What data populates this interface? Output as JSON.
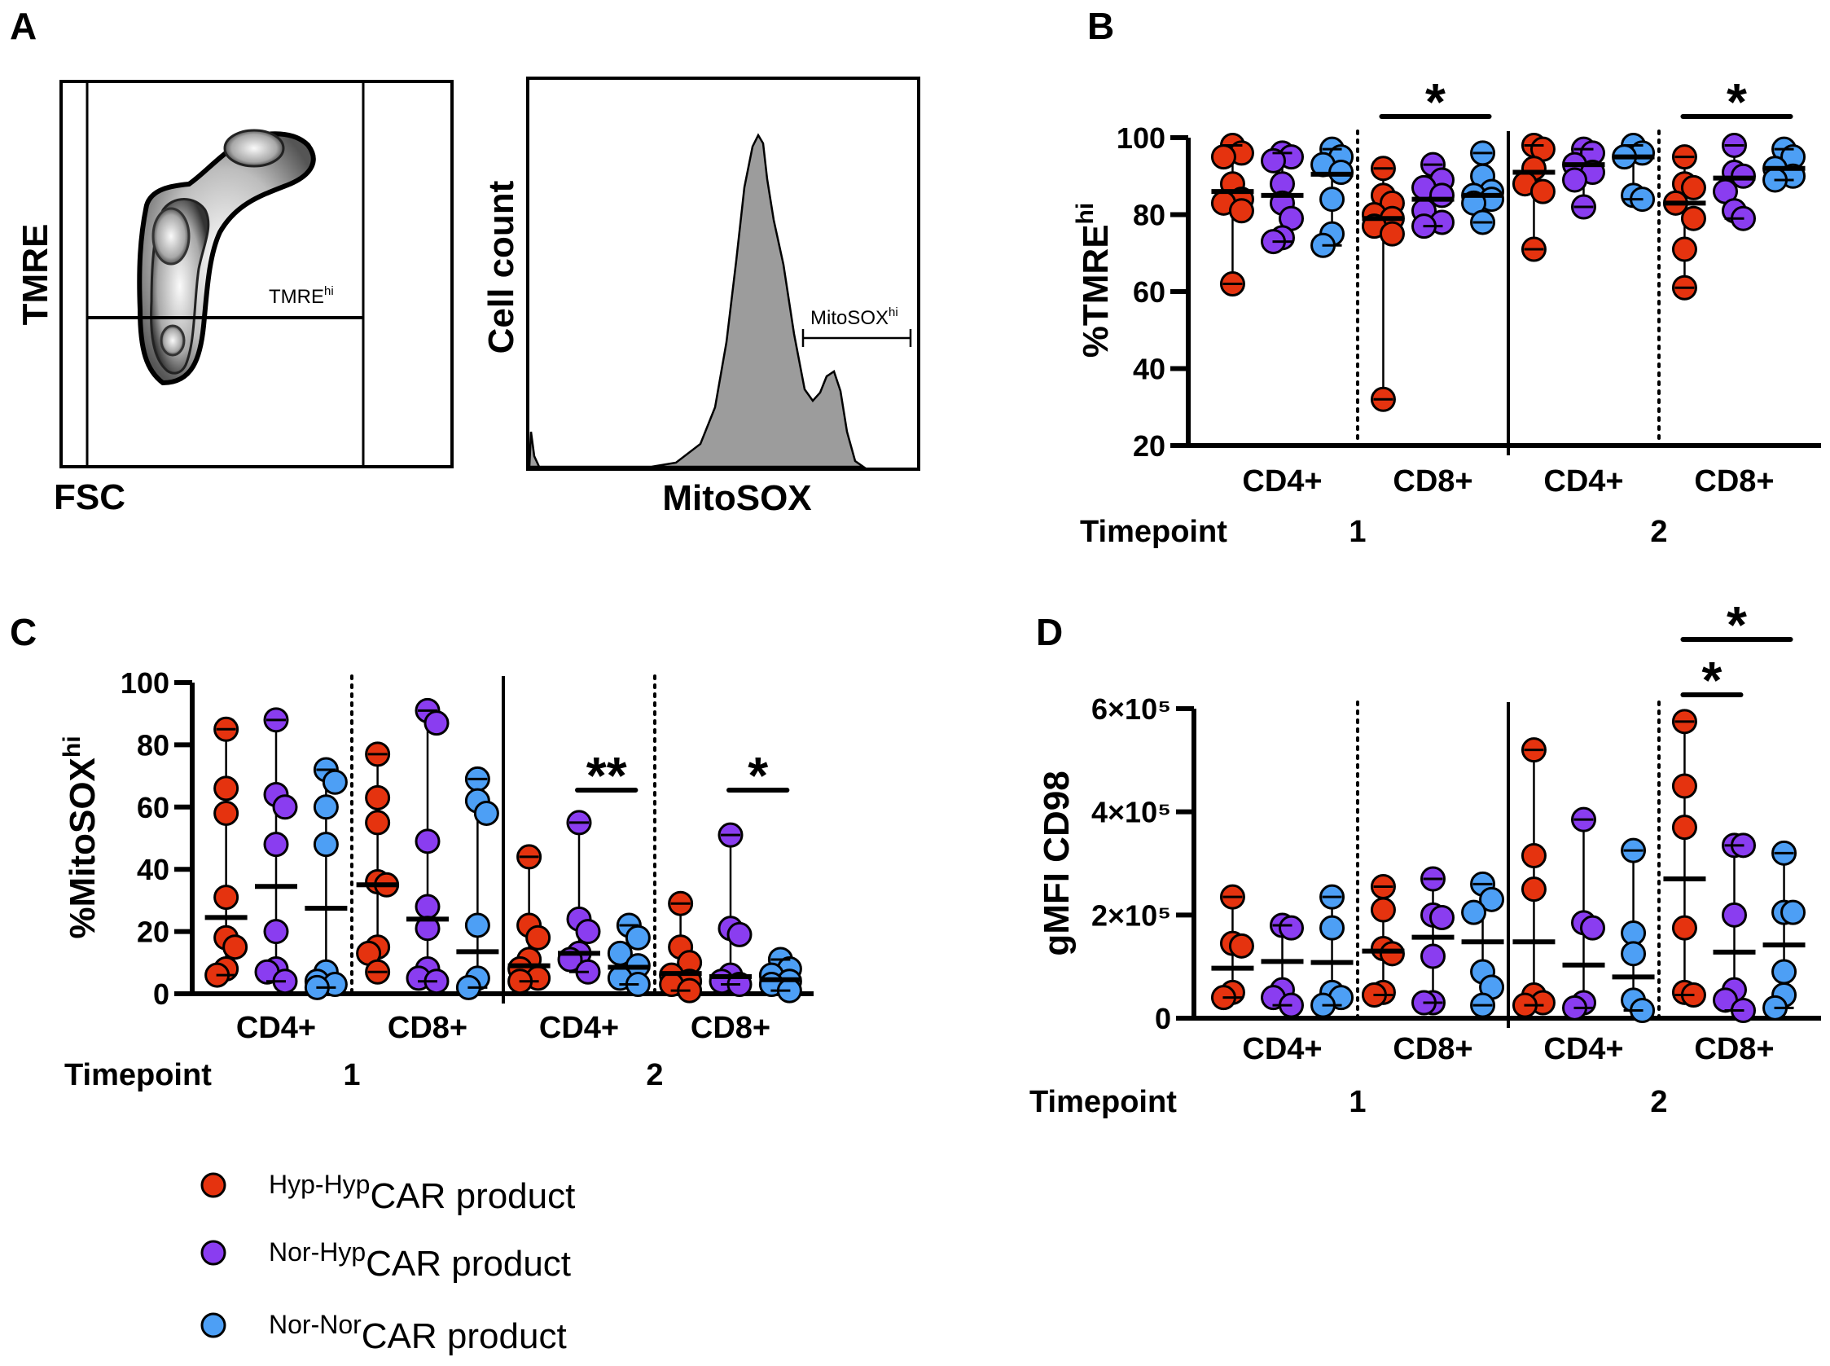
{
  "panel_a": {
    "letter": "A",
    "left_plot": {
      "ylabel": "TMRE",
      "xlabel": "FSC",
      "gate": "TMRE",
      "gate_sup": "hi"
    },
    "right_plot": {
      "ylabel": "Cell count",
      "xlabel": "MitoSOX",
      "gate": "MitoSOX",
      "gate_sup": "hi"
    }
  },
  "colors": {
    "Hyp-Hyp": "#e5330f",
    "Nor-Hyp": "#8a3df0",
    "Nor-Nor": "#4d9ff5"
  },
  "legend": {
    "items": [
      {
        "prefix": "Hyp-Hyp",
        "label": "CAR product",
        "color": "#e5330f"
      },
      {
        "prefix": "Nor-Hyp",
        "label": "CAR product",
        "color": "#8a3df0"
      },
      {
        "prefix": "Nor-Nor",
        "label": "CAR product",
        "color": "#4d9ff5"
      }
    ]
  },
  "chart_data": [
    {
      "panel": "B",
      "type": "scatter",
      "ylabel": "%TMRE",
      "ylabel_sup": "hi",
      "ylim": [
        20,
        100
      ],
      "yticks": [
        20,
        40,
        60,
        80,
        100
      ],
      "ytick_labels": [
        "20",
        "40",
        "60",
        "80",
        "100"
      ],
      "timepoint_label": "Timepoint",
      "timepoints": [
        "1",
        "2"
      ],
      "series": [
        "Hyp-Hyp",
        "Nor-Hyp",
        "Nor-Nor"
      ],
      "error_bars": "range",
      "groups": [
        {
          "category": "CD4+",
          "timepoint": "1",
          "values": [
            [
              98,
              96,
              95,
              88,
              84,
              83,
              81,
              62
            ],
            [
              96,
              95,
              94,
              88,
              83,
              79,
              74,
              73
            ],
            [
              97,
              95,
              93,
              91,
              84,
              75,
              72
            ]
          ],
          "means": [
            86,
            85,
            90.5
          ]
        },
        {
          "category": "CD8+",
          "timepoint": "1",
          "values": [
            [
              92,
              85,
              83,
              80,
              79,
              77,
              75,
              32
            ],
            [
              93,
              89,
              87,
              85,
              81,
              78,
              77
            ],
            [
              96,
              90,
              86,
              85,
              84,
              83,
              78
            ]
          ],
          "means": [
            79,
            84,
            85
          ]
        },
        {
          "category": "CD4+",
          "timepoint": "2",
          "values": [
            [
              98,
              97,
              92,
              88,
              86,
              71
            ],
            [
              97,
              96,
              93,
              91,
              89,
              82
            ],
            [
              98,
              96,
              95,
              85,
              84
            ]
          ],
          "means": [
            91,
            93,
            95
          ]
        },
        {
          "category": "CD8+",
          "timepoint": "2",
          "values": [
            [
              95,
              88,
              87,
              83,
              79,
              71,
              61
            ],
            [
              98,
              91,
              90,
              86,
              81,
              79
            ],
            [
              97,
              95,
              92,
              90,
              89
            ]
          ],
          "means": [
            83,
            89.5,
            92
          ]
        }
      ],
      "significance": [
        {
          "group": 1,
          "from": 0,
          "to": 2,
          "label": "*",
          "level": 1
        },
        {
          "group": 3,
          "from": 0,
          "to": 2,
          "label": "*",
          "level": 1
        }
      ]
    },
    {
      "panel": "C",
      "type": "scatter",
      "ylabel": "%MitoSOX",
      "ylabel_sup": "hi",
      "ylim": [
        0,
        100
      ],
      "yticks": [
        0,
        20,
        40,
        60,
        80,
        100
      ],
      "ytick_labels": [
        "0",
        "20",
        "40",
        "60",
        "80",
        "100"
      ],
      "timepoint_label": "Timepoint",
      "timepoints": [
        "1",
        "2"
      ],
      "series": [
        "Hyp-Hyp",
        "Nor-Hyp",
        "Nor-Nor"
      ],
      "error_bars": "range",
      "groups": [
        {
          "category": "CD4+",
          "timepoint": "1",
          "values": [
            [
              85,
              66,
              58,
              31,
              18,
              15,
              8,
              6
            ],
            [
              88,
              64,
              60,
              48,
              20,
              8,
              7,
              4
            ],
            [
              72,
              68,
              60,
              48,
              7,
              4,
              3,
              2
            ]
          ],
          "means": [
            24.5,
            34.5,
            27.5
          ]
        },
        {
          "category": "CD8+",
          "timepoint": "1",
          "values": [
            [
              77,
              63,
              55,
              36,
              35,
              15,
              13,
              7
            ],
            [
              91,
              87,
              49,
              28,
              21,
              8,
              5,
              4
            ],
            [
              69,
              62,
              58,
              22,
              5,
              2
            ]
          ],
          "means": [
            35,
            24,
            13.5
          ]
        },
        {
          "category": "CD4+",
          "timepoint": "2",
          "values": [
            [
              44,
              22,
              18,
              11,
              8,
              5,
              4
            ],
            [
              55,
              24,
              20,
              13,
              11,
              7
            ],
            [
              22,
              18,
              13,
              9,
              5,
              3
            ]
          ],
          "means": [
            9,
            13,
            8.5
          ]
        },
        {
          "category": "CD8+",
          "timepoint": "2",
          "values": [
            [
              29,
              15,
              10,
              6,
              4,
              3,
              1
            ],
            [
              51,
              21,
              19,
              6,
              4,
              3
            ],
            [
              11,
              8,
              6,
              4,
              3,
              1
            ]
          ],
          "means": [
            6.5,
            5.5,
            4.5
          ]
        }
      ],
      "significance": [
        {
          "group": 2,
          "from": 1,
          "to": 2,
          "label": "**",
          "level": 1
        },
        {
          "group": 3,
          "from": 1,
          "to": 2,
          "label": "*",
          "level": 1
        }
      ]
    },
    {
      "panel": "D",
      "type": "scatter",
      "ylabel": "gMFI CD98",
      "ylabel_sup": "",
      "value_unit": "x10^5",
      "ylim": [
        0,
        6
      ],
      "yticks": [
        0,
        2,
        4,
        6
      ],
      "ytick_labels": [
        "0",
        "2×10⁵",
        "4×10⁵",
        "6×10⁵"
      ],
      "timepoint_label": "Timepoint",
      "timepoints": [
        "1",
        "2"
      ],
      "series": [
        "Hyp-Hyp",
        "Nor-Hyp",
        "Nor-Nor"
      ],
      "error_bars": "range",
      "groups": [
        {
          "category": "CD4+",
          "timepoint": "1",
          "values": [
            [
              2.35,
              1.45,
              1.4,
              0.5,
              0.4
            ],
            [
              1.8,
              1.75,
              0.55,
              0.4,
              0.25
            ],
            [
              2.35,
              1.75,
              0.5,
              0.4,
              0.25
            ]
          ],
          "means": [
            0.97,
            1.1,
            1.08
          ]
        },
        {
          "category": "CD8+",
          "timepoint": "1",
          "values": [
            [
              2.55,
              2.1,
              1.35,
              1.25,
              0.5,
              0.45
            ],
            [
              2.7,
              2.0,
              1.95,
              1.2,
              0.3,
              0.3
            ],
            [
              2.6,
              2.3,
              2.05,
              0.9,
              0.6,
              0.25
            ]
          ],
          "means": [
            1.3,
            1.57,
            1.48
          ]
        },
        {
          "category": "CD4+",
          "timepoint": "2",
          "values": [
            [
              5.2,
              3.15,
              2.5,
              0.45,
              0.3,
              0.25
            ],
            [
              3.85,
              1.85,
              1.75,
              0.3,
              0.2
            ],
            [
              3.25,
              1.65,
              1.25,
              0.35,
              0.15
            ]
          ],
          "means": [
            1.48,
            1.03,
            0.8
          ]
        },
        {
          "category": "CD8+",
          "timepoint": "2",
          "values": [
            [
              5.75,
              4.5,
              3.7,
              1.75,
              0.5,
              0.45
            ],
            [
              3.35,
              3.35,
              2.0,
              0.55,
              0.35,
              0.15
            ],
            [
              3.2,
              2.05,
              2.05,
              0.9,
              0.45,
              0.2
            ]
          ],
          "means": [
            2.7,
            1.28,
            1.42
          ]
        }
      ],
      "significance": [
        {
          "group": 3,
          "from": 0,
          "to": 1,
          "label": "*",
          "level": 1
        },
        {
          "group": 3,
          "from": 0,
          "to": 2,
          "label": "*",
          "level": 2
        }
      ]
    }
  ]
}
